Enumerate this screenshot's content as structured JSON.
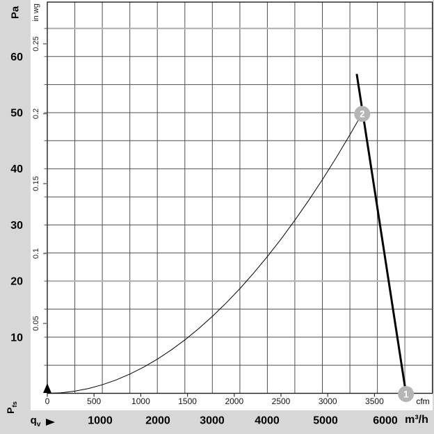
{
  "colors": {
    "page_background": "#d7d7d7",
    "plot_background": "#ffffff",
    "grid_dark": "#4f4f4f",
    "grid_light": "#b5b5b5",
    "border": "#1c1c1c",
    "curve": "#000000",
    "marker_fill": "#b5b5b5",
    "marker_text": "#ffffff"
  },
  "axes": {
    "y_metric_unit": "Pa",
    "y_metric_ticks": [
      "10",
      "20",
      "30",
      "40",
      "50",
      "60"
    ],
    "y_imperial_unit": "in wg",
    "y_imperial_ticks": [
      "0.05",
      "0.1",
      "0.15",
      "0.2",
      "0.25"
    ],
    "x_metric_unit": "m³/h",
    "x_metric_ticks": [
      "1000",
      "2000",
      "3000",
      "4000",
      "5000",
      "6000"
    ],
    "x_imperial_unit": "cfm",
    "x_imperial_ticks": [
      "0",
      "500",
      "1000",
      "1500",
      "2000",
      "2500",
      "3000",
      "3500"
    ],
    "x_symbol_base": "q",
    "x_symbol_sub": "v",
    "y_symbol_base": "P",
    "y_symbol_sub": "fs"
  },
  "chart_data": {
    "type": "line",
    "x_unit": "m³/h",
    "y_unit": "Pa",
    "x_range": [
      0,
      7000
    ],
    "y_range": [
      0,
      69.7
    ],
    "grid": {
      "x_step_m3h": 500,
      "y_step_pa": 5,
      "light_x_m3h": [
        6500
      ],
      "light_y_pa": [
        65,
        20
      ]
    },
    "series": [
      {
        "name": "system-resistance-curve",
        "style": "thin",
        "points": [
          [
            0,
            0
          ],
          [
            250,
            0.1
          ],
          [
            500,
            0.38
          ],
          [
            750,
            0.86
          ],
          [
            1000,
            1.52
          ],
          [
            1250,
            2.38
          ],
          [
            1500,
            3.43
          ],
          [
            1750,
            4.66
          ],
          [
            2000,
            6.09
          ],
          [
            2250,
            7.71
          ],
          [
            2500,
            9.52
          ],
          [
            2750,
            11.51
          ],
          [
            3000,
            13.7
          ],
          [
            3250,
            16.08
          ],
          [
            3500,
            18.65
          ],
          [
            3750,
            21.41
          ],
          [
            4000,
            24.36
          ],
          [
            4250,
            27.5
          ],
          [
            4500,
            30.83
          ],
          [
            4750,
            34.35
          ],
          [
            5000,
            38.06
          ],
          [
            5250,
            41.96
          ],
          [
            5500,
            46.06
          ],
          [
            5725,
            49.9
          ]
        ]
      },
      {
        "name": "fan-characteristic-curve",
        "style": "thick",
        "points": [
          [
            5625,
            56.9
          ],
          [
            6520,
            0
          ]
        ]
      }
    ],
    "markers": [
      {
        "label": "1",
        "m3h": 6520,
        "pa": 0
      },
      {
        "label": "2",
        "m3h": 5725,
        "pa": 49.9
      }
    ],
    "conversion": {
      "m3h_per_cfm": 1.699,
      "pa_per_inwg": 249.089
    }
  }
}
